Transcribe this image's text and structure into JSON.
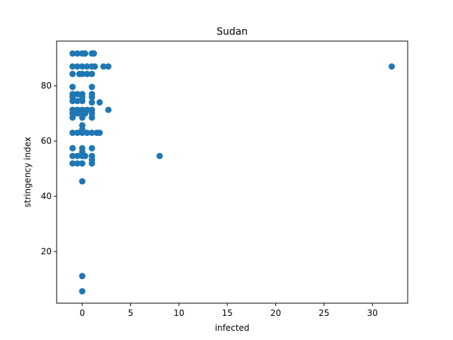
{
  "chart_data": {
    "type": "scatter",
    "title": "Sudan",
    "xlabel": "infected",
    "ylabel": "stringency index",
    "xlim": [
      -2.65,
      33.65
    ],
    "ylim": [
      1.3,
      96.2
    ],
    "xticks": [
      0,
      5,
      10,
      15,
      20,
      25,
      30
    ],
    "yticks": [
      20,
      40,
      60,
      80
    ],
    "grid": false,
    "marker_color": "#1f77b4",
    "points": [
      [
        -1,
        91.7
      ],
      [
        -0.5,
        91.7
      ],
      [
        0,
        91.7
      ],
      [
        0.3,
        91.7
      ],
      [
        1,
        91.7
      ],
      [
        1.2,
        91.7
      ],
      [
        -1,
        87.0
      ],
      [
        -0.5,
        87.0
      ],
      [
        0,
        87.0
      ],
      [
        0.5,
        87.0
      ],
      [
        1,
        87.0
      ],
      [
        1.3,
        87.0
      ],
      [
        2.2,
        87.0
      ],
      [
        2.7,
        87.0
      ],
      [
        -1,
        84.3
      ],
      [
        -0.3,
        84.3
      ],
      [
        0,
        84.3
      ],
      [
        0.5,
        84.3
      ],
      [
        1,
        84.3
      ],
      [
        -1,
        79.6
      ],
      [
        1,
        79.6
      ],
      [
        -1,
        77.0
      ],
      [
        -0.5,
        77.0
      ],
      [
        0,
        77.0
      ],
      [
        1,
        77.0
      ],
      [
        -1,
        75.9
      ],
      [
        0,
        75.9
      ],
      [
        1,
        75.9
      ],
      [
        -1,
        74.5
      ],
      [
        -0.5,
        74.5
      ],
      [
        0,
        74.5
      ],
      [
        1,
        74.0
      ],
      [
        1.8,
        74.0
      ],
      [
        -1,
        71.3
      ],
      [
        -0.5,
        71.3
      ],
      [
        0,
        71.3
      ],
      [
        0.5,
        71.3
      ],
      [
        1,
        71.3
      ],
      [
        2.7,
        71.3
      ],
      [
        -1,
        70.0
      ],
      [
        -0.5,
        70.0
      ],
      [
        0,
        70.0
      ],
      [
        0.3,
        70.0
      ],
      [
        1,
        70.0
      ],
      [
        -1,
        68.5
      ],
      [
        0,
        68.5
      ],
      [
        1,
        68.5
      ],
      [
        0,
        65.7
      ],
      [
        0,
        64.2
      ],
      [
        -1,
        63.0
      ],
      [
        -0.5,
        63.0
      ],
      [
        0,
        63.0
      ],
      [
        0.5,
        63.0
      ],
      [
        1,
        63.0
      ],
      [
        1.5,
        63.0
      ],
      [
        1.8,
        63.0
      ],
      [
        -1,
        57.4
      ],
      [
        0,
        57.4
      ],
      [
        1,
        57.4
      ],
      [
        0,
        56.0
      ],
      [
        -1,
        54.6
      ],
      [
        -0.5,
        54.6
      ],
      [
        0,
        54.6
      ],
      [
        0.3,
        54.6
      ],
      [
        1,
        54.6
      ],
      [
        8,
        54.6
      ],
      [
        1,
        53.2
      ],
      [
        -1,
        51.9
      ],
      [
        -0.5,
        51.9
      ],
      [
        0,
        51.9
      ],
      [
        1,
        51.9
      ],
      [
        0,
        45.4
      ],
      [
        0,
        11.1
      ],
      [
        0,
        5.6
      ],
      [
        32,
        87.0
      ]
    ]
  }
}
